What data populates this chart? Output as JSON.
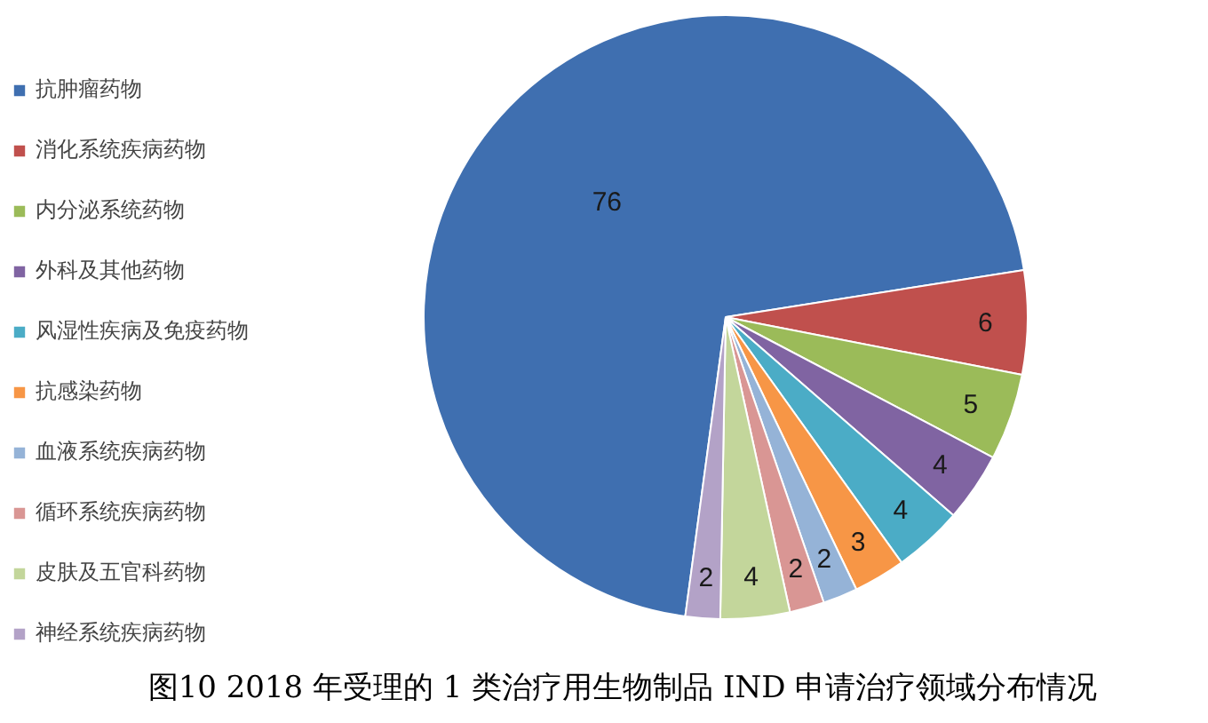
{
  "chart_data": {
    "type": "pie",
    "title": "图10 2018 年受理的 1 类治疗用生物制品 IND 申请治疗领域分布情况",
    "categories": [
      "抗肿瘤药物",
      "消化系统疾病药物",
      "内分泌系统药物",
      "外科及其他药物",
      "风湿性疾病及免疫药物",
      "抗感染药物",
      "血液系统疾病药物",
      "循环系统疾病药物",
      "皮肤及五官科药物",
      "神经系统疾病药物"
    ],
    "values": [
      76,
      6,
      5,
      4,
      4,
      3,
      2,
      2,
      4,
      2
    ],
    "colors": [
      "#3f6fb0",
      "#c0504d",
      "#9bbb59",
      "#8064a2",
      "#4bacc6",
      "#f79646",
      "#95b3d7",
      "#d99694",
      "#c3d69b",
      "#b3a2c7"
    ],
    "data_labels": true,
    "legend": "left"
  }
}
